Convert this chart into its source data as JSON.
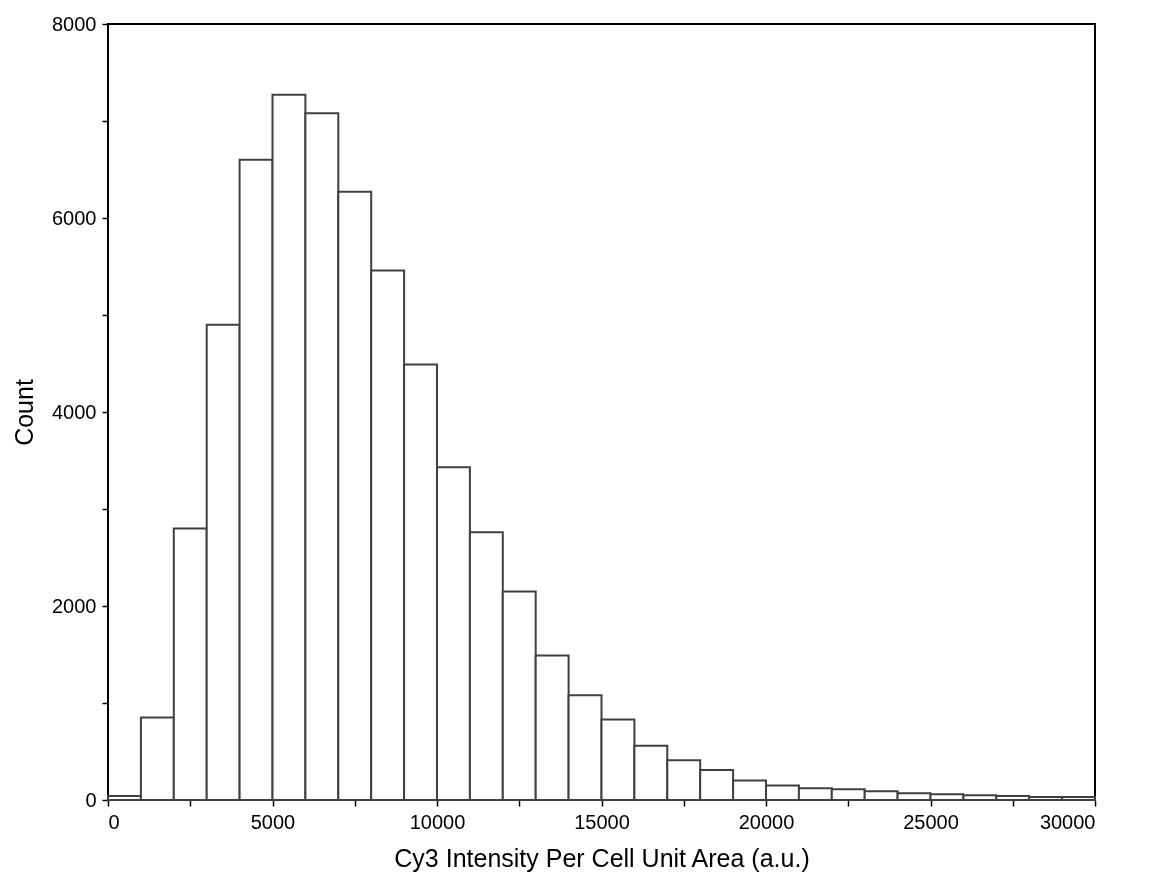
{
  "chart_data": {
    "type": "histogram",
    "xlabel": "Cy3 Intensity Per Cell Unit Area (a.u.)",
    "ylabel": "Count",
    "bins": [
      0,
      1000,
      2000,
      3000,
      4000,
      5000,
      6000,
      7000,
      8000,
      9000,
      10000,
      11000,
      12000,
      13000,
      14000,
      15000,
      16000,
      17000,
      18000,
      19000,
      20000,
      21000,
      22000,
      23000,
      24000,
      25000,
      26000,
      27000,
      28000,
      29000,
      30000
    ],
    "values": [
      40,
      850,
      2800,
      4900,
      6600,
      7270,
      7080,
      6270,
      5460,
      4490,
      3430,
      2760,
      2150,
      1490,
      1080,
      830,
      560,
      410,
      310,
      200,
      150,
      120,
      110,
      90,
      70,
      60,
      50,
      40,
      30,
      30
    ],
    "color": "#ffffff",
    "xlim": [
      0,
      30000
    ],
    "ylim": [
      0,
      8000
    ],
    "xticks": [
      0,
      {
        "value": 2500,
        "label": null
      },
      5000,
      {
        "value": 7500,
        "label": null
      },
      10000,
      {
        "value": 12500,
        "label": null
      },
      15000,
      {
        "value": 17500,
        "label": null
      },
      20000,
      {
        "value": 22500,
        "label": null
      },
      25000,
      {
        "value": 27500,
        "label": null
      },
      30000
    ],
    "yticks": [
      0,
      {
        "value": 1000,
        "label": null
      },
      2000,
      {
        "value": 3000,
        "label": null
      },
      4000,
      {
        "value": 5000,
        "label": null
      },
      6000,
      {
        "value": 7000,
        "label": null
      },
      8000
    ],
    "grid": false
  }
}
